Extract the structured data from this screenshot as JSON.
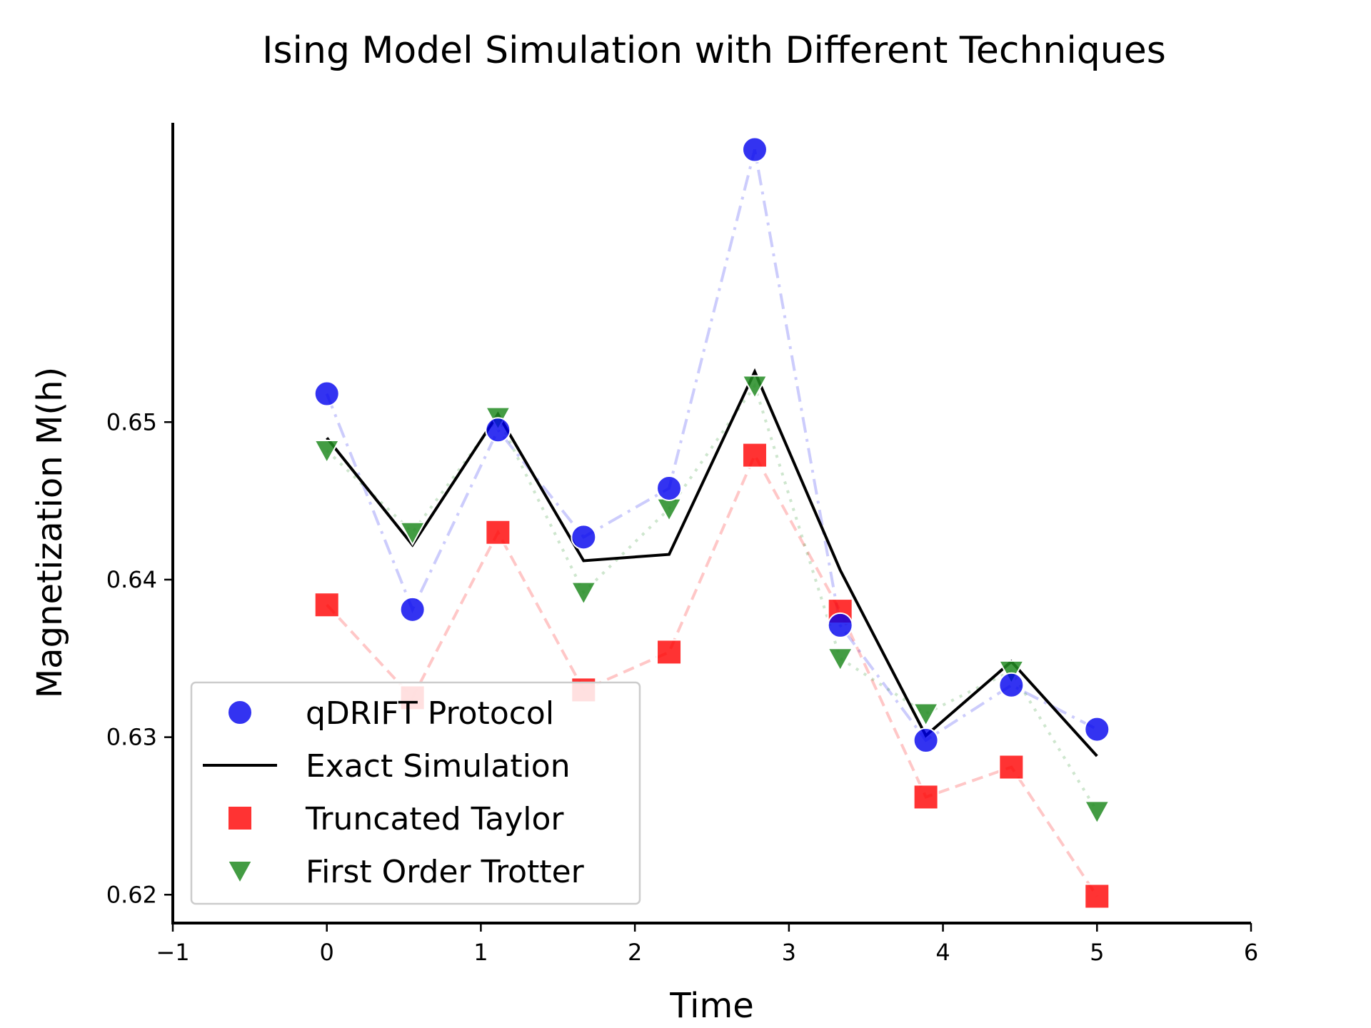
{
  "chart_data": {
    "type": "line",
    "title": "Ising Model Simulation with Different Techniques",
    "xlabel": "Time",
    "ylabel": "Magnetization M(h)",
    "xlim": [
      -1,
      6
    ],
    "ylim": [
      0.6182,
      0.669
    ],
    "xticks": [
      -1,
      0,
      1,
      2,
      3,
      4,
      5,
      6
    ],
    "xtick_labels": [
      "−1",
      "0",
      "1",
      "2",
      "3",
      "4",
      "5",
      "6"
    ],
    "yticks": [
      0.62,
      0.63,
      0.64,
      0.65
    ],
    "ytick_labels": [
      "0.62",
      "0.63",
      "0.64",
      "0.65"
    ],
    "grid": false,
    "legend_position": "lower-left",
    "x": [
      0,
      0.556,
      1.111,
      1.667,
      2.222,
      2.778,
      3.333,
      3.889,
      4.444,
      5.0
    ],
    "series": [
      {
        "name": "qDRIFT Protocol",
        "marker": "circle",
        "line_style": "dashdot",
        "color": "#0000ee",
        "values": [
          0.6518,
          0.6381,
          0.6495,
          0.6427,
          0.6458,
          0.6673,
          0.6371,
          0.6298,
          0.6333,
          0.6305
        ]
      },
      {
        "name": "Exact Simulation",
        "marker": "none",
        "line_style": "solid",
        "color": "#000000",
        "values": [
          0.649,
          0.6422,
          0.6505,
          0.6412,
          0.6416,
          0.6532,
          0.6406,
          0.6301,
          0.6348,
          0.6288
        ]
      },
      {
        "name": "Truncated Taylor",
        "marker": "square",
        "line_style": "dashed",
        "color": "#ff0000",
        "values": [
          0.6384,
          0.6325,
          0.643,
          0.633,
          0.6354,
          0.6479,
          0.638,
          0.6262,
          0.6281,
          0.6199
        ]
      },
      {
        "name": "First Order Trotter",
        "marker": "triangle-down",
        "line_style": "dotted",
        "color": "#228b22",
        "values": [
          0.6482,
          0.643,
          0.6503,
          0.6392,
          0.6445,
          0.6523,
          0.635,
          0.6315,
          0.6342,
          0.6253
        ]
      }
    ]
  }
}
